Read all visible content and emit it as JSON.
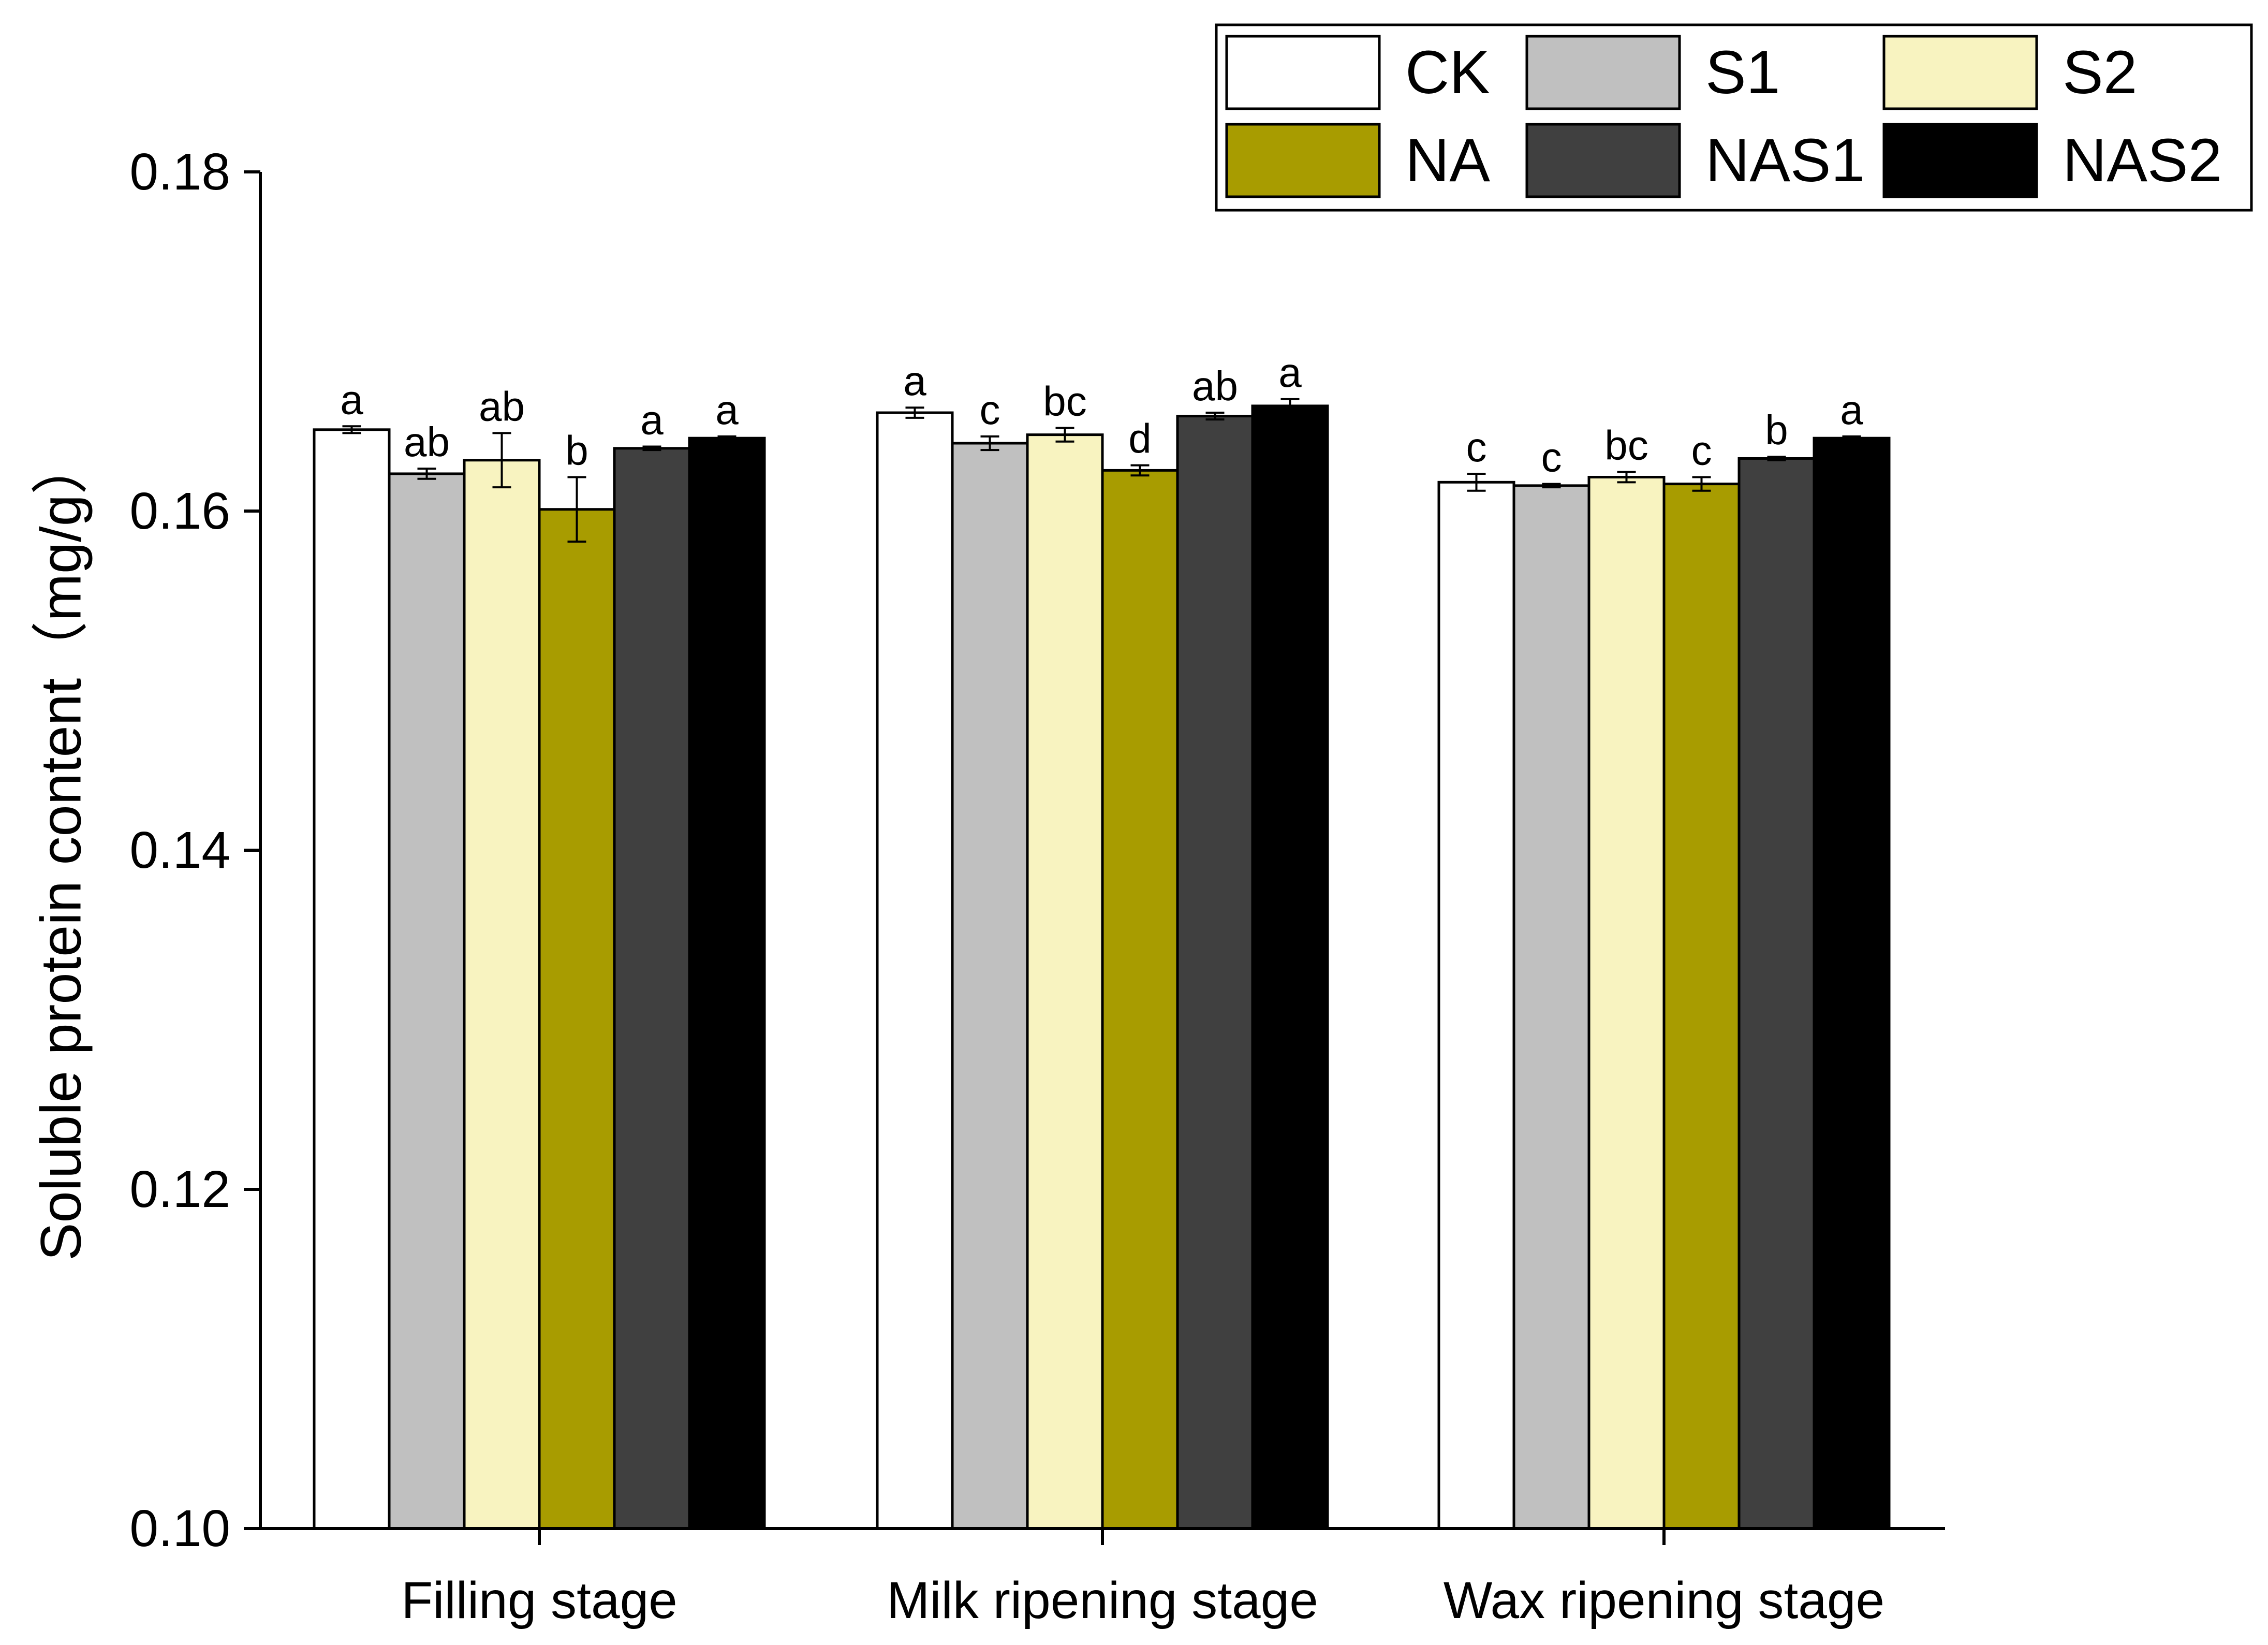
{
  "chart_data": {
    "type": "bar",
    "title": "",
    "xlabel": "",
    "ylabel": "Soluble protein content（mg/g）",
    "ylim": [
      0.1,
      0.18
    ],
    "yticks": [
      "0.10",
      "0.12",
      "0.14",
      "0.16",
      "0.18"
    ],
    "categories": [
      "Filling stage",
      "Milk ripening stage",
      "Wax ripening stage"
    ],
    "legend_position": "top-right",
    "series": [
      {
        "name": "CK",
        "color": "#ffffff",
        "values": [
          0.1648,
          0.1658,
          0.1617
        ],
        "errors": [
          0.0002,
          0.0003,
          0.0005
        ],
        "labels": [
          "a",
          "a",
          "c"
        ]
      },
      {
        "name": "S1",
        "color": "#c0c0c0",
        "values": [
          0.1622,
          0.164,
          0.1615
        ],
        "errors": [
          0.0003,
          0.0004,
          0.0001
        ],
        "labels": [
          "ab",
          "c",
          "c"
        ]
      },
      {
        "name": "S2",
        "color": "#f8f3c0",
        "values": [
          0.163,
          0.1645,
          0.162
        ],
        "errors": [
          0.0016,
          0.0004,
          0.0003
        ],
        "labels": [
          "ab",
          "bc",
          "bc"
        ]
      },
      {
        "name": "NA",
        "color": "#a89c00",
        "values": [
          0.1601,
          0.1624,
          0.1616
        ],
        "errors": [
          0.0019,
          0.0003,
          0.0004
        ],
        "labels": [
          "b",
          "d",
          "c"
        ]
      },
      {
        "name": "NAS1",
        "color": "#404040",
        "values": [
          0.1637,
          0.1656,
          0.1631
        ],
        "errors": [
          0.0001,
          0.0002,
          0.0001
        ],
        "labels": [
          "a",
          "ab",
          "b"
        ]
      },
      {
        "name": "NAS2",
        "color": "#000000",
        "values": [
          0.1643,
          0.1662,
          0.1643
        ],
        "errors": [
          0.0001,
          0.0004,
          0.0001
        ],
        "labels": [
          "a",
          "a",
          "a"
        ]
      }
    ]
  }
}
